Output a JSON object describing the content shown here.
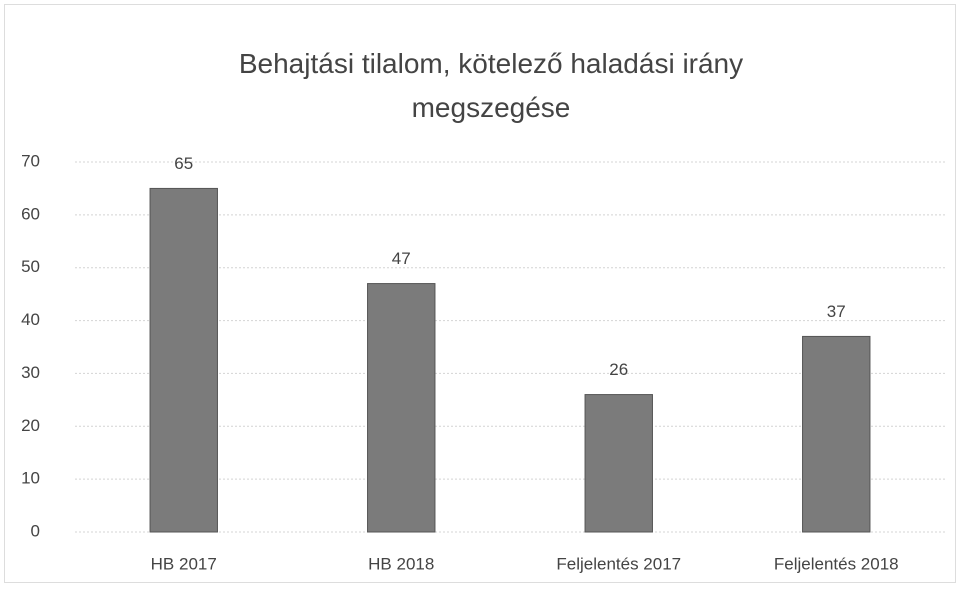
{
  "chart_data": {
    "type": "bar",
    "title": "Behajtási tilalom, kötelező haladási irány megszegése",
    "categories": [
      "HB 2017",
      "HB 2018",
      "Feljelentés 2017",
      "Feljelentés 2018"
    ],
    "values": [
      65,
      47,
      26,
      37
    ],
    "color": "#7b7b7b",
    "ylim": [
      0,
      70
    ],
    "yticks": [
      0,
      10,
      20,
      30,
      40,
      50,
      60,
      70
    ],
    "grid": true
  }
}
